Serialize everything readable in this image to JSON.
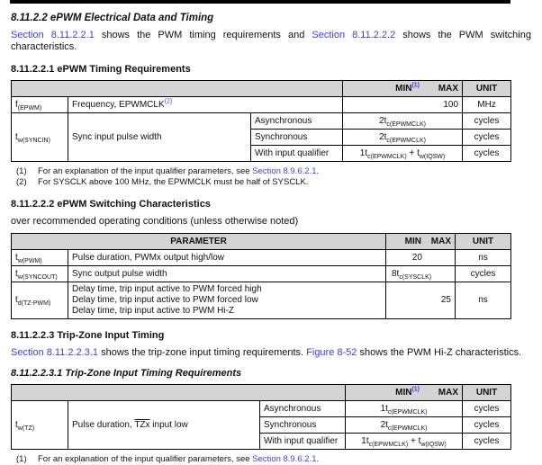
{
  "colors": {
    "link": "#3b3cf0",
    "table_header_bg": "#d4d4d4",
    "text": "#111111",
    "topbar": "#000000"
  },
  "headings": {
    "section": "8.11.2.2 ePWM Electrical Data and Timing",
    "timing_req": "8.11.2.2.1 ePWM Timing Requirements",
    "switching": "8.11.2.2.2 ePWM Switching Characteristics",
    "tripzone": "8.11.2.2.3 Trip-Zone Input Timing",
    "tripzone_req": "8.11.2.2.3.1 Trip-Zone Input Timing Requirements"
  },
  "paragraphs": {
    "intro1": [
      {
        "t": "Section 8.11.2.2.1",
        "k": "link"
      },
      " shows the PWM timing requirements and ",
      {
        "t": "Section 8.11.2.2.2",
        "k": "link"
      },
      " shows the PWM switching characteristics."
    ],
    "conditions": "over recommended operating conditions (unless otherwise noted)",
    "intro2": [
      {
        "t": "Section 8.11.2.2.3.1",
        "k": "link"
      },
      " shows the trip-zone input timing requirements. ",
      {
        "t": "Figure 8-52",
        "k": "link"
      },
      " shows the PWM Hi-Z characteristics."
    ]
  },
  "footnotes": {
    "t1": [
      {
        "num": "(1)",
        "segs": [
          "For an explanation of the input qualifier parameters, see ",
          {
            "t": "Section 8.9.6.2.1",
            "k": "link"
          },
          "."
        ]
      },
      {
        "num": "(2)",
        "segs": [
          "For SYSCLK above 100 MHz, the EPWMCLK must be half of SYSCLK."
        ]
      }
    ],
    "t3": [
      {
        "num": "(1)",
        "segs": [
          "For an explanation of the input qualifier parameters, see ",
          {
            "t": "Section 8.9.6.2.1",
            "k": "link"
          },
          "."
        ]
      }
    ]
  },
  "tables": {
    "t1": {
      "header": {
        "min": [
          "MIN",
          {
            "t": "(1)",
            "k": "suplink"
          }
        ],
        "max": "MAX",
        "unit": "UNIT"
      },
      "r1": {
        "sym": [
          "f",
          {
            "t": "(EPWM)",
            "k": "sub"
          }
        ],
        "desc": [
          "Frequency, EPWMCLK",
          {
            "t": "(2)",
            "k": "suplink"
          }
        ],
        "val": [
          "100"
        ],
        "unit": "MHz"
      },
      "r2": {
        "sym": [
          "t",
          {
            "t": "w(SYNCIN)",
            "k": "sub"
          }
        ],
        "desc": [
          "Sync input pulse width"
        ],
        "conds": [
          {
            "cond": "Asynchronous",
            "val": [
              "2t",
              {
                "t": "c(EPWMCLK)",
                "k": "sub"
              }
            ],
            "unit": "cycles"
          },
          {
            "cond": "Synchronous",
            "val": [
              "2t",
              {
                "t": "c(EPWMCLK)",
                "k": "sub"
              }
            ],
            "unit": "cycles"
          },
          {
            "cond": "With input qualifier",
            "val": [
              "1t",
              {
                "t": "c(EPWMCLK)",
                "k": "sub"
              },
              " + t",
              {
                "t": "w(IQSW)",
                "k": "sub"
              }
            ],
            "unit": "cycles"
          }
        ]
      }
    },
    "t2": {
      "header": {
        "param": "PARAMETER",
        "min": "MIN",
        "max": "MAX",
        "unit": "UNIT"
      },
      "rows": [
        {
          "sym": [
            "t",
            {
              "t": "w(PWM)",
              "k": "sub"
            }
          ],
          "desc": [
            "Pulse duration, PWMx output high/low"
          ],
          "val": [
            "20"
          ],
          "unit": "ns"
        },
        {
          "sym": [
            "t",
            {
              "t": "w(SYNCOUT)",
              "k": "sub"
            }
          ],
          "desc": [
            "Sync output pulse width"
          ],
          "val": [
            "8t",
            {
              "t": "c(SYSCLK)",
              "k": "sub"
            }
          ],
          "unit": "cycles"
        },
        {
          "sym": [
            "t",
            {
              "t": "d(TZ-PWM)",
              "k": "sub"
            }
          ],
          "desc": [
            "Delay time, trip input active to PWM forced high",
            {
              "k": "br"
            },
            "Delay time, trip input active to PWM forced low",
            {
              "k": "br"
            },
            "Delay time, trip input active to PWM Hi-Z"
          ],
          "val": [
            "25"
          ],
          "unit": "ns"
        }
      ]
    },
    "t3": {
      "header": {
        "min": [
          "MIN",
          {
            "t": "(1)",
            "k": "suplink"
          }
        ],
        "max": "MAX",
        "unit": "UNIT"
      },
      "row": {
        "sym": [
          "t",
          {
            "t": "w(TZ)",
            "k": "sub"
          }
        ],
        "desc": [
          "Pulse duration, ",
          {
            "t": "TZx",
            "k": "over"
          },
          " input low"
        ],
        "conds": [
          {
            "cond": "Asynchronous",
            "val": [
              "1t",
              {
                "t": "c(EPWMCLK)",
                "k": "sub"
              }
            ],
            "unit": "cycles"
          },
          {
            "cond": "Synchronous",
            "val": [
              "2t",
              {
                "t": "c(EPWMCLK)",
                "k": "sub"
              }
            ],
            "unit": "cycles"
          },
          {
            "cond": "With input qualifier",
            "val": [
              "1t",
              {
                "t": "c(EPWMCLK)",
                "k": "sub"
              },
              " + t",
              {
                "t": "w(IQSW)",
                "k": "sub"
              }
            ],
            "unit": "cycles"
          }
        ]
      }
    }
  }
}
